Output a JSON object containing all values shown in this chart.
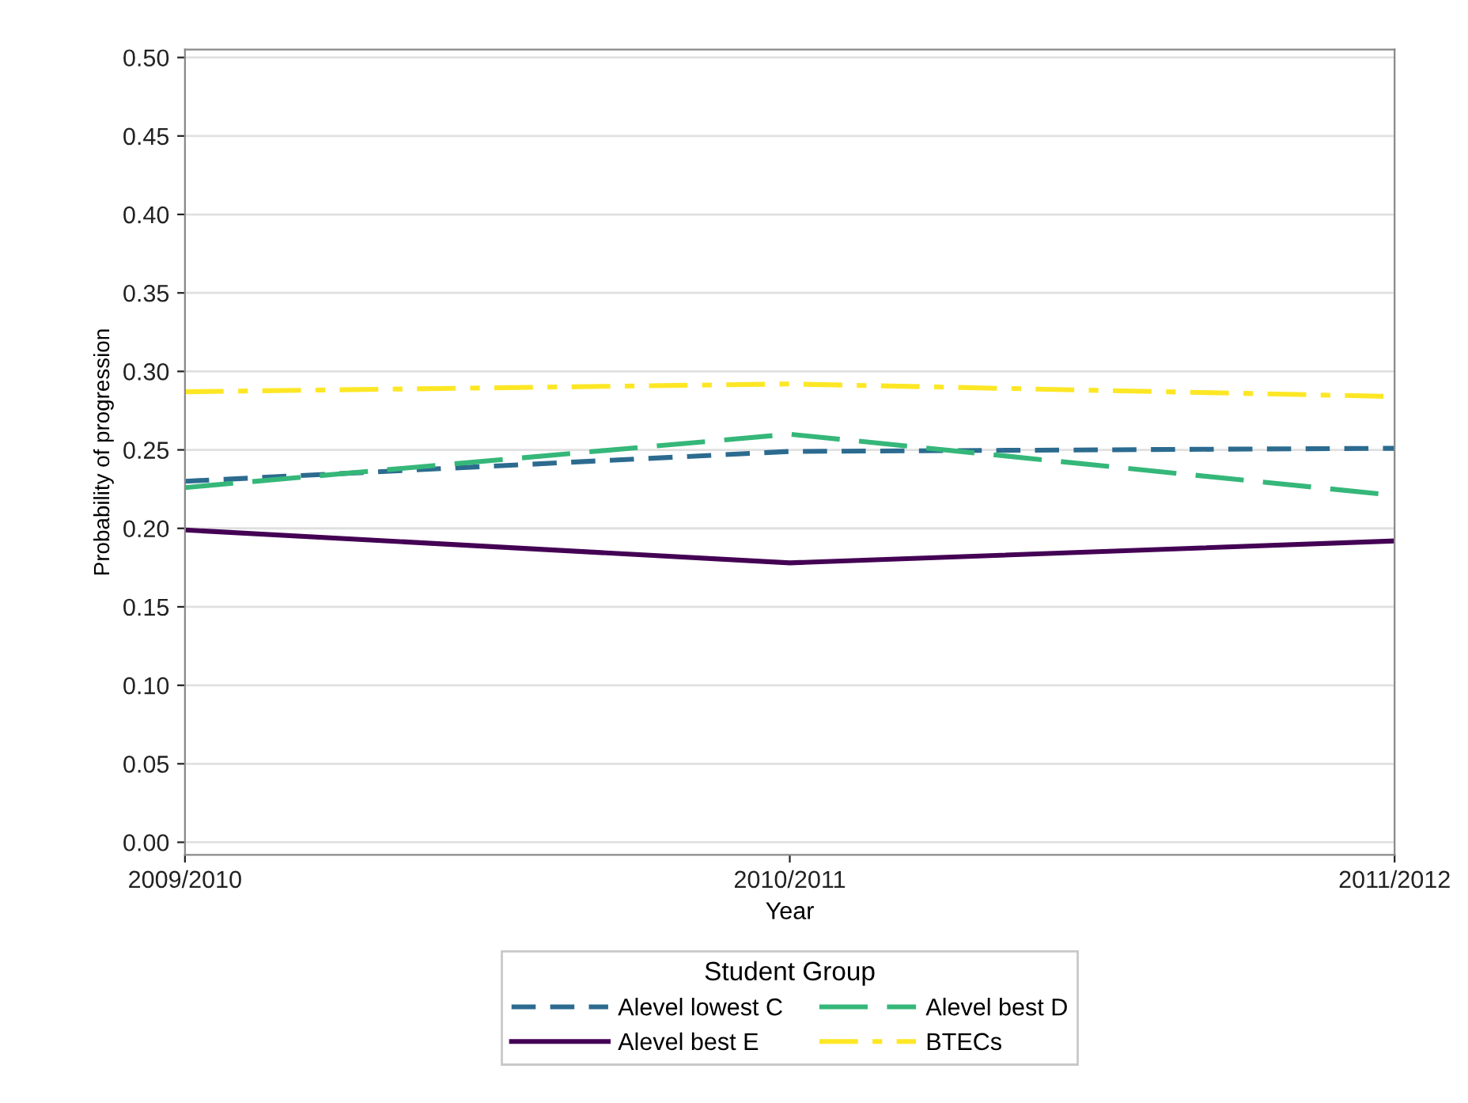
{
  "chart_data": {
    "type": "line",
    "xlabel": "Year",
    "ylabel": "Probability of progression",
    "legend_title": "Student Group",
    "categories": [
      "2009/2010",
      "2010/2011",
      "2011/2012"
    ],
    "series": [
      {
        "name": "Alevel lowest C",
        "color": "#2c6b8f",
        "line_style": "dashed",
        "values": [
          0.23,
          0.249,
          0.251
        ]
      },
      {
        "name": "Alevel best D",
        "color": "#35b779",
        "line_style": "longdash",
        "values": [
          0.226,
          0.26,
          0.221
        ]
      },
      {
        "name": "Alevel best E",
        "color": "#440154",
        "line_style": "solid",
        "values": [
          0.199,
          0.178,
          0.192
        ]
      },
      {
        "name": "BTECs",
        "color": "#fde725",
        "line_style": "dashdot",
        "values": [
          0.287,
          0.292,
          0.284
        ]
      }
    ],
    "ylim": [
      -0.008,
      0.505
    ],
    "yticks": [
      {
        "value": 0,
        "label": "0.00"
      },
      {
        "value": 0.05,
        "label": "0.05"
      },
      {
        "value": 0.1,
        "label": "0.10"
      },
      {
        "value": 0.15,
        "label": "0.15"
      },
      {
        "value": 0.2,
        "label": "0.20"
      },
      {
        "value": 0.25,
        "label": "0.25"
      },
      {
        "value": 0.3,
        "label": "0.30"
      },
      {
        "value": 0.35,
        "label": "0.35"
      },
      {
        "value": 0.4,
        "label": "0.40"
      },
      {
        "value": 0.45,
        "label": "0.45"
      },
      {
        "value": 0.5,
        "label": "0.50"
      }
    ],
    "grid": "y",
    "legend": "bottom"
  }
}
